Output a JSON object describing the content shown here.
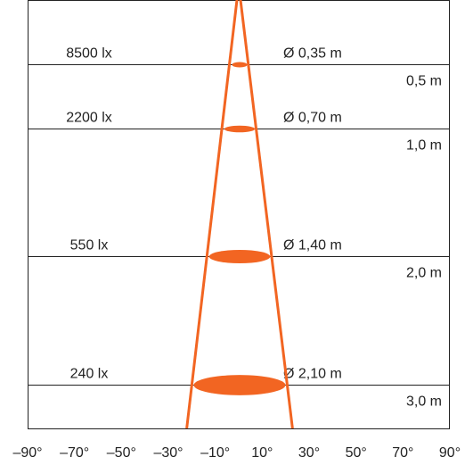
{
  "colors": {
    "beam": "#f26522",
    "frame": "#222222",
    "background": "#ffffff"
  },
  "chart_data": {
    "type": "beam-diagram",
    "levels": [
      {
        "illuminance": "8500 lx",
        "diameter": "Ø 0,35 m",
        "distance": "0,5 m",
        "distance_m": 0.5,
        "diameter_m": 0.35
      },
      {
        "illuminance": "2200 lx",
        "diameter": "Ø 0,70 m",
        "distance": "1,0 m",
        "distance_m": 1.0,
        "diameter_m": 0.7
      },
      {
        "illuminance": "550 lx",
        "diameter": "Ø 1,40 m",
        "distance": "2,0 m",
        "distance_m": 2.0,
        "diameter_m": 1.4
      },
      {
        "illuminance": "240 lx",
        "diameter": "Ø 2,10 m",
        "distance": "3,0 m",
        "distance_m": 3.0,
        "diameter_m": 2.1
      }
    ],
    "angle_ticks": [
      "–90°",
      "–70°",
      "–50°",
      "–30°",
      "–10°",
      "10°",
      "30°",
      "50°",
      "70°",
      "90°"
    ]
  }
}
